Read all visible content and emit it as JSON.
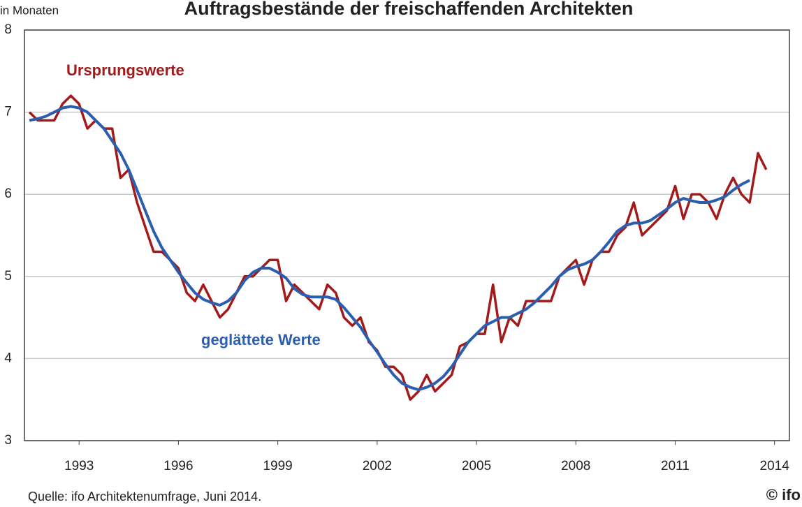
{
  "chart_data": {
    "type": "line",
    "title": "Auftragsbestände der freischaffenden Architekten",
    "y_label": "in Monaten",
    "source": "Quelle: ifo Architektenumfrage, Juni  2014.",
    "logo": "© ifo",
    "x": [
      1991.5,
      1991.75,
      1992,
      1992.25,
      1992.5,
      1992.75,
      1993,
      1993.25,
      1993.5,
      1993.75,
      1994,
      1994.25,
      1994.5,
      1994.75,
      1995,
      1995.25,
      1995.5,
      1995.75,
      1996,
      1996.25,
      1996.5,
      1996.75,
      1997,
      1997.25,
      1997.5,
      1997.75,
      1998,
      1998.25,
      1998.5,
      1998.75,
      1999,
      1999.25,
      1999.5,
      1999.75,
      2000,
      2000.25,
      2000.5,
      2000.75,
      2001,
      2001.25,
      2001.5,
      2001.75,
      2002,
      2002.25,
      2002.5,
      2002.75,
      2003,
      2003.25,
      2003.5,
      2003.75,
      2004,
      2004.25,
      2004.5,
      2004.75,
      2005,
      2005.25,
      2005.5,
      2005.75,
      2006,
      2006.25,
      2006.5,
      2006.75,
      2007,
      2007.25,
      2007.5,
      2007.75,
      2008,
      2008.25,
      2008.5,
      2008.75,
      2009,
      2009.25,
      2009.5,
      2009.75,
      2010,
      2010.25,
      2010.5,
      2010.75,
      2011,
      2011.25,
      2011.5,
      2011.75,
      2012,
      2012.25,
      2012.5,
      2012.75,
      2013,
      2013.25,
      2013.5,
      2013.75
    ],
    "series": [
      {
        "name": "Ursprungswerte",
        "color": "#a31a1a",
        "values": [
          7.0,
          6.9,
          6.9,
          6.9,
          7.1,
          7.2,
          7.1,
          6.8,
          6.9,
          6.8,
          6.8,
          6.2,
          6.3,
          5.9,
          5.6,
          5.3,
          5.3,
          5.2,
          5.1,
          4.8,
          4.7,
          4.9,
          4.7,
          4.5,
          4.6,
          4.8,
          5.0,
          5.0,
          5.1,
          5.2,
          5.2,
          4.7,
          4.9,
          4.8,
          4.7,
          4.6,
          4.9,
          4.8,
          4.5,
          4.4,
          4.5,
          4.2,
          4.1,
          3.9,
          3.9,
          3.8,
          3.5,
          3.6,
          3.8,
          3.6,
          3.7,
          3.8,
          4.15,
          4.2,
          4.3,
          4.3,
          4.9,
          4.2,
          4.5,
          4.4,
          4.7,
          4.7,
          4.7,
          4.7,
          5.0,
          5.1,
          5.2,
          4.9,
          5.2,
          5.3,
          5.3,
          5.5,
          5.6,
          5.9,
          5.5,
          5.6,
          5.7,
          5.8,
          6.1,
          5.7,
          6.0,
          6.0,
          5.9,
          5.7,
          6.0,
          6.2,
          6.0,
          5.9,
          6.5,
          6.3
        ]
      },
      {
        "name": "geglättete Werte",
        "color": "#2a5fb0",
        "values": [
          6.9,
          6.92,
          6.95,
          7.0,
          7.05,
          7.07,
          7.05,
          7.0,
          6.9,
          6.8,
          6.65,
          6.5,
          6.3,
          6.05,
          5.8,
          5.55,
          5.35,
          5.2,
          5.05,
          4.92,
          4.8,
          4.72,
          4.68,
          4.65,
          4.7,
          4.8,
          4.95,
          5.05,
          5.1,
          5.1,
          5.05,
          4.98,
          4.85,
          4.78,
          4.75,
          4.75,
          4.75,
          4.72,
          4.62,
          4.5,
          4.38,
          4.22,
          4.08,
          3.93,
          3.8,
          3.7,
          3.65,
          3.62,
          3.65,
          3.7,
          3.78,
          3.9,
          4.05,
          4.2,
          4.3,
          4.4,
          4.45,
          4.5,
          4.5,
          4.55,
          4.6,
          4.68,
          4.78,
          4.88,
          5.0,
          5.08,
          5.12,
          5.15,
          5.2,
          5.3,
          5.42,
          5.55,
          5.62,
          5.65,
          5.65,
          5.68,
          5.75,
          5.82,
          5.9,
          5.95,
          5.92,
          5.9,
          5.9,
          5.93,
          5.97,
          6.05,
          6.12,
          6.17,
          null,
          null
        ]
      }
    ],
    "xlim": [
      1991.35,
      2014.45
    ],
    "xticks": [
      1993,
      1996,
      1999,
      2002,
      2005,
      2008,
      2011,
      2014
    ],
    "ylim": [
      3,
      8
    ],
    "yticks": [
      3,
      4,
      5,
      6,
      7,
      8
    ],
    "grid": true
  }
}
